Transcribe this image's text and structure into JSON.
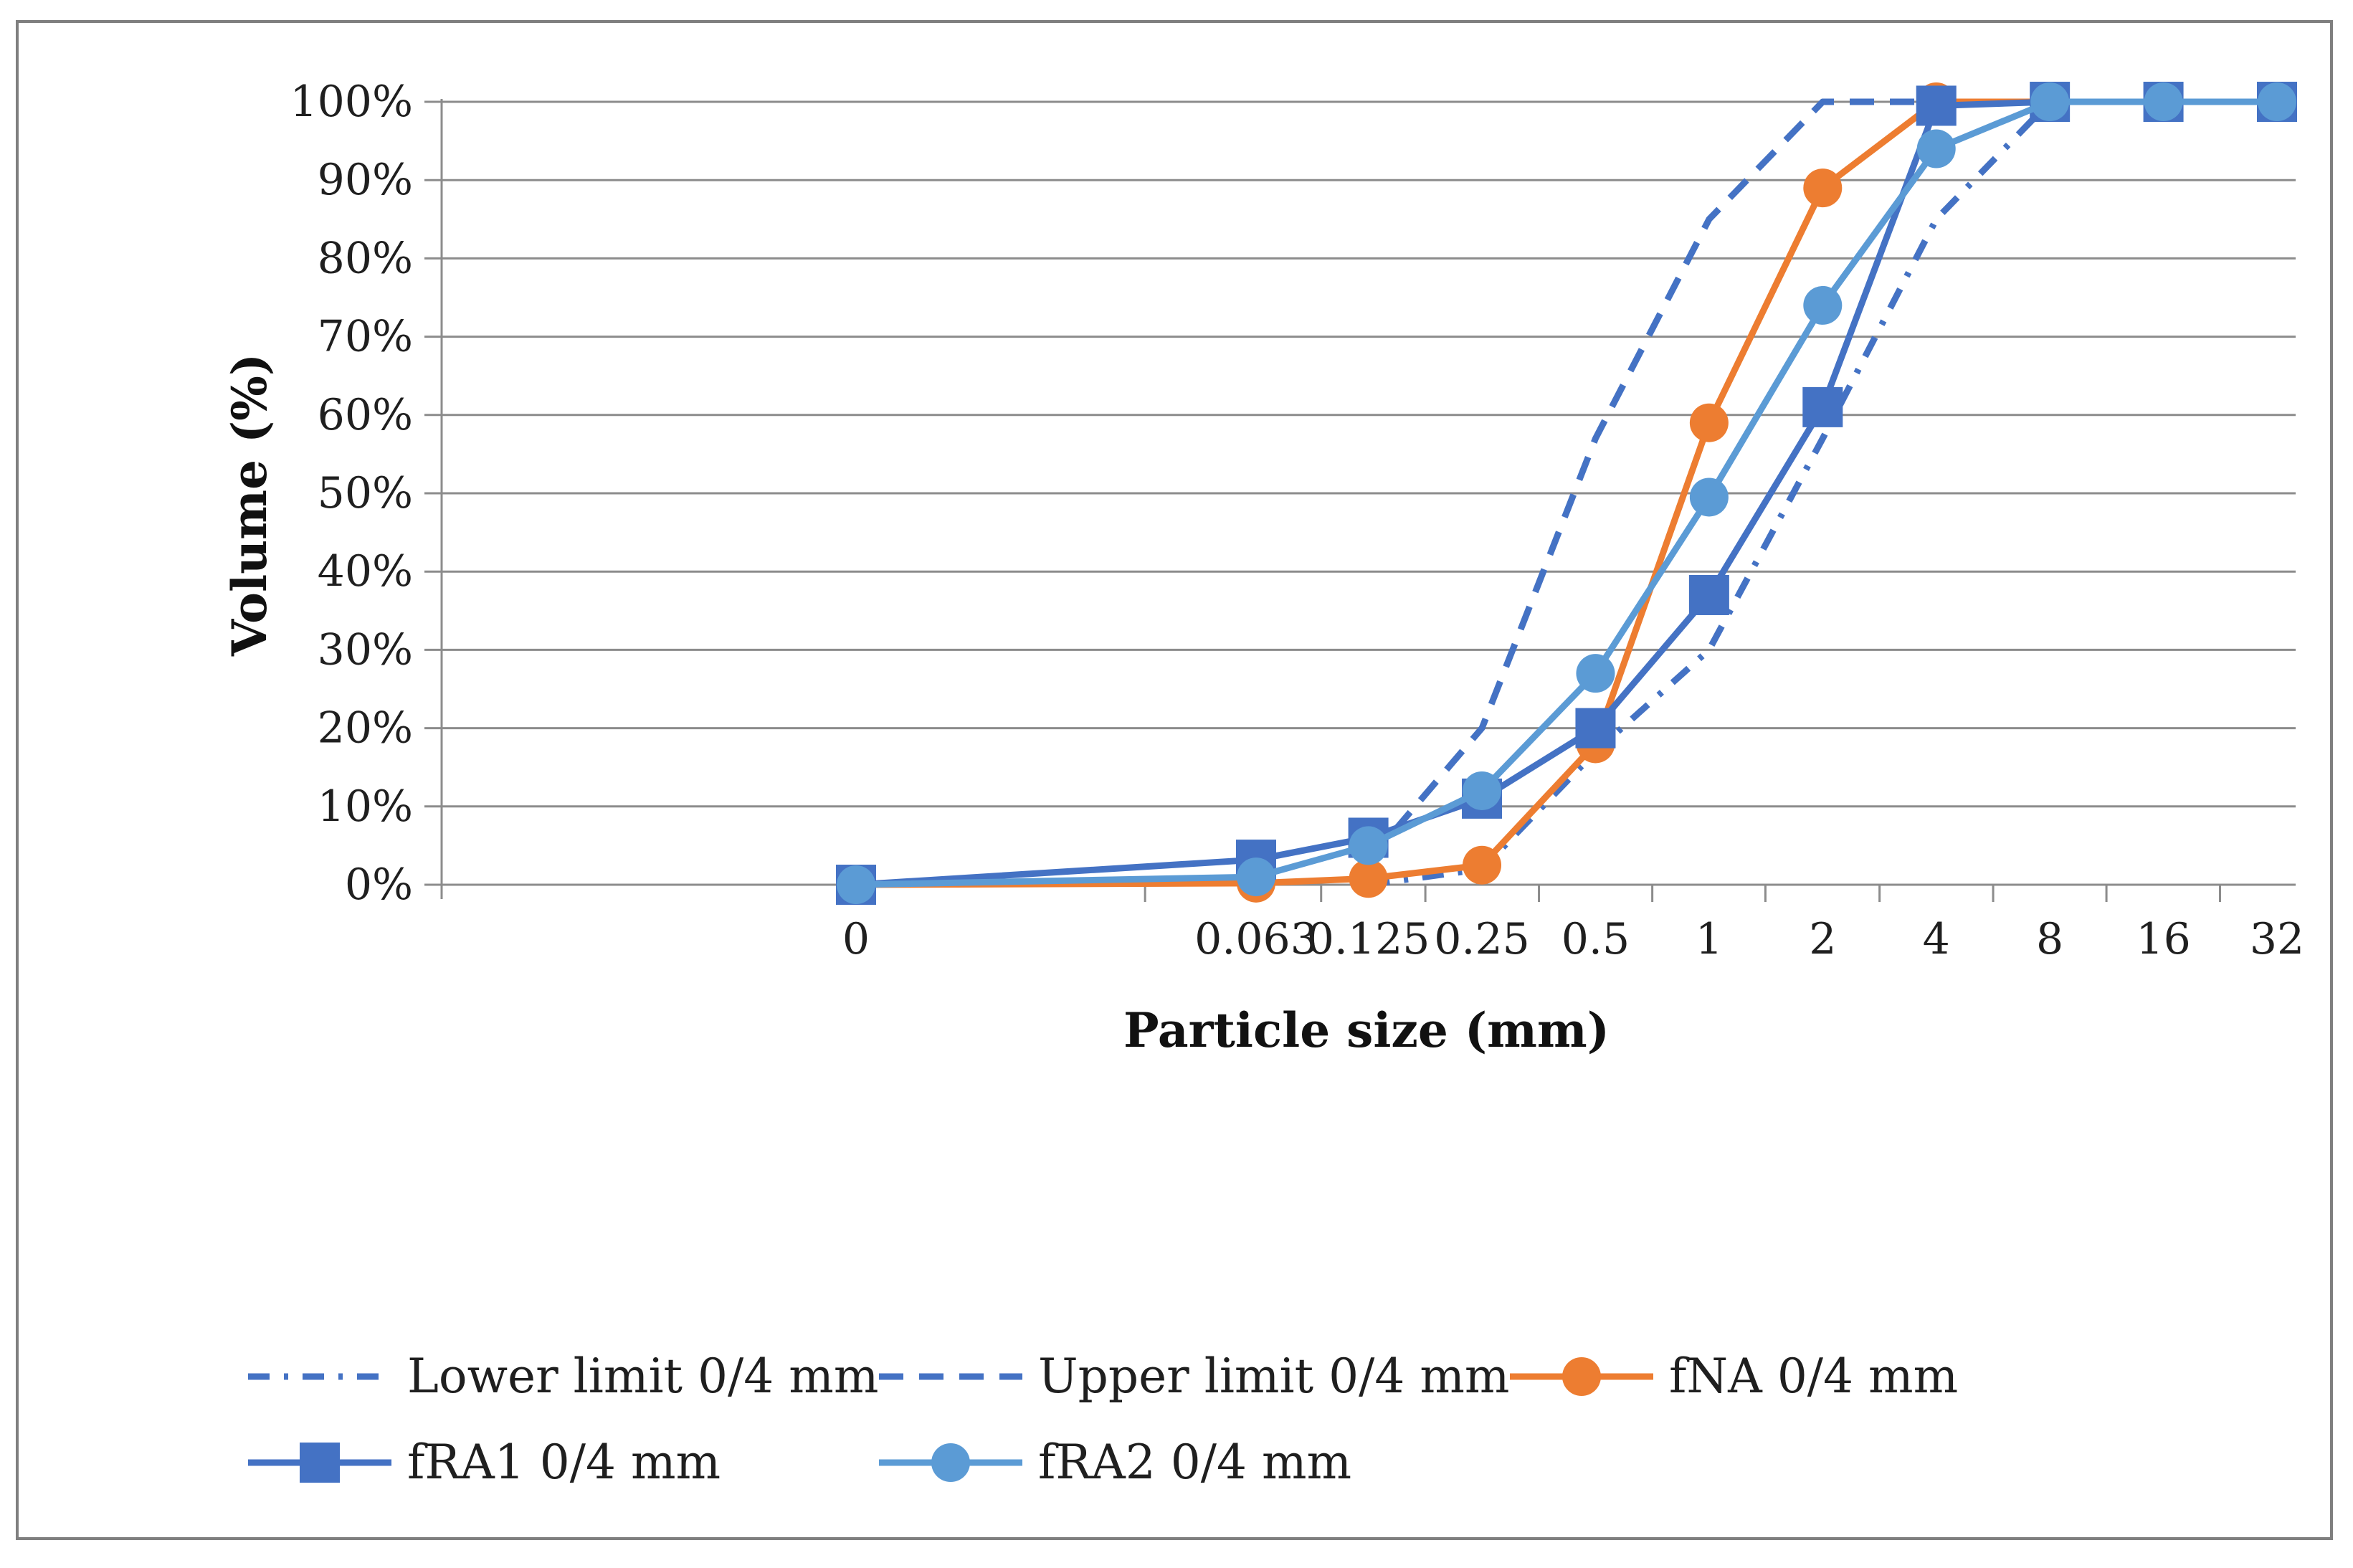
{
  "chart_data": {
    "type": "line",
    "xlabel": "Particle size (mm)",
    "ylabel": "Volume (%)",
    "ylim": [
      0,
      100
    ],
    "yticks": [
      "0%",
      "10%",
      "20%",
      "30%",
      "40%",
      "50%",
      "60%",
      "70%",
      "80%",
      "90%",
      "100%"
    ],
    "xscale": "log2",
    "x_categories": [
      "0",
      "0.063",
      "0.125",
      "0.25",
      "0.5",
      "1",
      "2",
      "4",
      "8",
      "16",
      "32"
    ],
    "grid": "horizontal",
    "legend_position": "bottom",
    "series": [
      {
        "name": "Lower limit 0/4 mm",
        "color": "#4472c4",
        "style": "dash-dot",
        "marker": "none",
        "points": [
          [
            0.125,
            0
          ],
          [
            0.25,
            2
          ],
          [
            0.5,
            17
          ],
          [
            1,
            30
          ],
          [
            2,
            57
          ],
          [
            4,
            85
          ],
          [
            8,
            100
          ],
          [
            16,
            100
          ],
          [
            32,
            100
          ]
        ]
      },
      {
        "name": "Upper limit 0/4 mm",
        "color": "#4472c4",
        "style": "dash",
        "marker": "none",
        "points": [
          [
            0.125,
            3
          ],
          [
            0.25,
            20
          ],
          [
            0.5,
            57
          ],
          [
            1,
            85
          ],
          [
            2,
            100
          ],
          [
            4,
            100
          ],
          [
            8,
            100
          ],
          [
            16,
            100
          ],
          [
            32,
            100
          ]
        ]
      },
      {
        "name": "fNA 0/4 mm",
        "color": "#ed7d31",
        "style": "solid",
        "marker": "circle",
        "points": [
          [
            0,
            0
          ],
          [
            0.063,
            0.2
          ],
          [
            0.125,
            0.8
          ],
          [
            0.25,
            2.5
          ],
          [
            0.5,
            18
          ],
          [
            1,
            59
          ],
          [
            2,
            89
          ],
          [
            4,
            100
          ],
          [
            8,
            100
          ],
          [
            16,
            100
          ],
          [
            32,
            100
          ]
        ]
      },
      {
        "name": "fRA1 0/4 mm",
        "color": "#4472c4",
        "style": "solid",
        "marker": "square",
        "points": [
          [
            0,
            0
          ],
          [
            0.063,
            3.2
          ],
          [
            0.125,
            6
          ],
          [
            0.25,
            11
          ],
          [
            0.5,
            20
          ],
          [
            1,
            37
          ],
          [
            2,
            61
          ],
          [
            4,
            99.5
          ],
          [
            8,
            100
          ],
          [
            16,
            100
          ],
          [
            32,
            100
          ]
        ]
      },
      {
        "name": "fRA2 0/4 mm",
        "color": "#5b9bd5",
        "style": "solid",
        "marker": "circle",
        "points": [
          [
            0,
            0
          ],
          [
            0.063,
            1
          ],
          [
            0.125,
            5
          ],
          [
            0.25,
            12
          ],
          [
            0.5,
            27
          ],
          [
            1,
            49.5
          ],
          [
            2,
            74
          ],
          [
            4,
            94
          ],
          [
            8,
            100
          ],
          [
            16,
            100
          ],
          [
            32,
            100
          ]
        ]
      }
    ]
  }
}
